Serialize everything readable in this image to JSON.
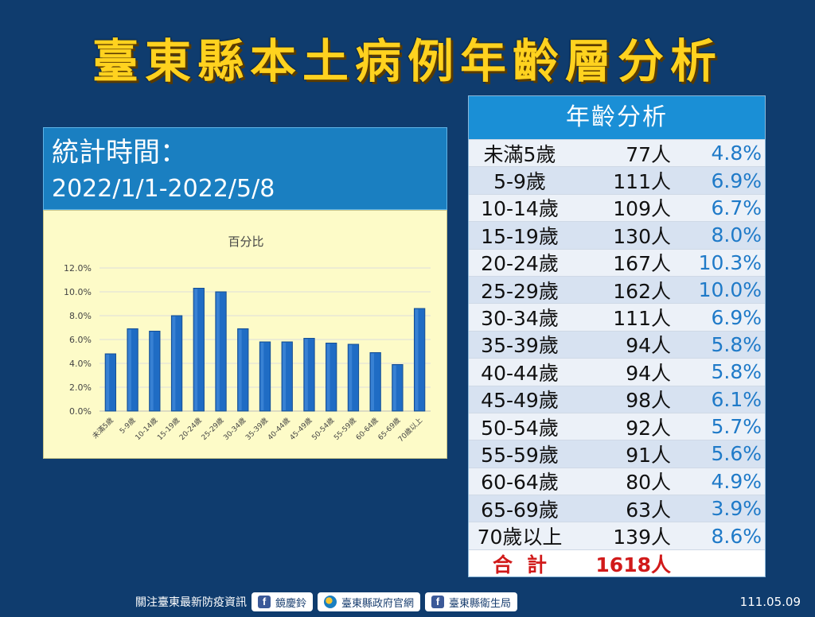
{
  "title": "臺東縣本土病例年齡層分析",
  "stat_period": {
    "label": "統計時間：",
    "range": "2022/1/1-2022/5/8"
  },
  "table": {
    "header": "年齡分析",
    "rows": [
      {
        "age": "未滿5歲",
        "count": "77人",
        "pct": "4.8%"
      },
      {
        "age": "5-9歲",
        "count": "111人",
        "pct": "6.9%"
      },
      {
        "age": "10-14歲",
        "count": "109人",
        "pct": "6.7%"
      },
      {
        "age": "15-19歲",
        "count": "130人",
        "pct": "8.0%"
      },
      {
        "age": "20-24歲",
        "count": "167人",
        "pct": "10.3%"
      },
      {
        "age": "25-29歲",
        "count": "162人",
        "pct": "10.0%"
      },
      {
        "age": "30-34歲",
        "count": "111人",
        "pct": "6.9%"
      },
      {
        "age": "35-39歲",
        "count": "94人",
        "pct": "5.8%"
      },
      {
        "age": "40-44歲",
        "count": "94人",
        "pct": "5.8%"
      },
      {
        "age": "45-49歲",
        "count": "98人",
        "pct": "6.1%"
      },
      {
        "age": "50-54歲",
        "count": "92人",
        "pct": "5.7%"
      },
      {
        "age": "55-59歲",
        "count": "91人",
        "pct": "5.6%"
      },
      {
        "age": "60-64歲",
        "count": "80人",
        "pct": "4.9%"
      },
      {
        "age": "65-69歲",
        "count": "63人",
        "pct": "3.9%"
      },
      {
        "age": "70歲以上",
        "count": "139人",
        "pct": "8.6%"
      }
    ],
    "total": {
      "label": "合計",
      "count": "1618人"
    }
  },
  "footer": {
    "prefix": "關注臺東最新防疫資訊",
    "links": [
      "鏡慶鈴",
      "臺東縣政府官網",
      "臺東縣衛生局"
    ]
  },
  "date": "111.05.09",
  "colors": {
    "background": "#0f3c6e",
    "title": "#ffd21f",
    "bar": "#1f6cc4",
    "chart_bg": "#fdfbc8",
    "pct_text": "#1f7ac8",
    "total_text": "#d11a1a"
  },
  "chart_data": {
    "type": "bar",
    "title": "百分比",
    "categories": [
      "未滿5歲",
      "5-9歲",
      "10-14歲",
      "15-19歲",
      "20-24歲",
      "25-29歲",
      "30-34歲",
      "35-39歲",
      "40-44歲",
      "45-49歲",
      "50-54歲",
      "55-59歲",
      "60-64歲",
      "65-69歲",
      "70歲以上"
    ],
    "values": [
      4.8,
      6.9,
      6.7,
      8.0,
      10.3,
      10.0,
      6.9,
      5.8,
      5.8,
      6.1,
      5.7,
      5.6,
      4.9,
      3.9,
      8.6
    ],
    "yticks": [
      "0.0%",
      "2.0%",
      "4.0%",
      "6.0%",
      "8.0%",
      "10.0%",
      "12.0%"
    ],
    "ylim": [
      0,
      12
    ],
    "grid": true,
    "legend": "none"
  }
}
